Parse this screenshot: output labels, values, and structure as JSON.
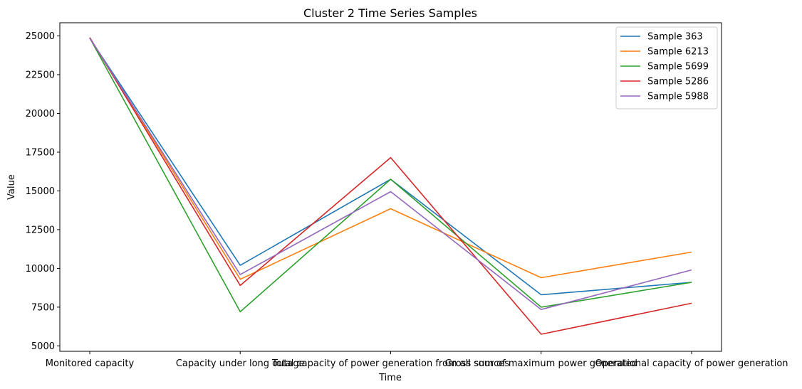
{
  "chart_data": {
    "type": "line",
    "title": "Cluster 2 Time Series Samples",
    "xlabel": "Time",
    "ylabel": "Value",
    "categories": [
      "Monitored capacity",
      "Capacity under long outage",
      "Total capacity of power generation from all sources",
      "Gross sum of maximum power generated",
      "Operational capacity of power generation"
    ],
    "yticks": [
      5000,
      7500,
      10000,
      12500,
      15000,
      17500,
      20000,
      22500,
      25000
    ],
    "ylim": [
      4650,
      25850
    ],
    "legend_position": "top-right",
    "grid": false,
    "series": [
      {
        "name": "Sample 363",
        "color": "#1f77b4",
        "values": [
          24850,
          10200,
          15750,
          8300,
          9100
        ]
      },
      {
        "name": "Sample 6213",
        "color": "#ff7f0e",
        "values": [
          24880,
          9300,
          13850,
          9400,
          11050
        ]
      },
      {
        "name": "Sample 5699",
        "color": "#2ca02c",
        "values": [
          24870,
          7200,
          15750,
          7500,
          9100
        ]
      },
      {
        "name": "Sample 5286",
        "color": "#d62728",
        "values": [
          24900,
          8900,
          17150,
          5750,
          7750
        ]
      },
      {
        "name": "Sample 5988",
        "color": "#9467bd",
        "values": [
          24860,
          9600,
          14950,
          7350,
          9900
        ]
      }
    ]
  }
}
